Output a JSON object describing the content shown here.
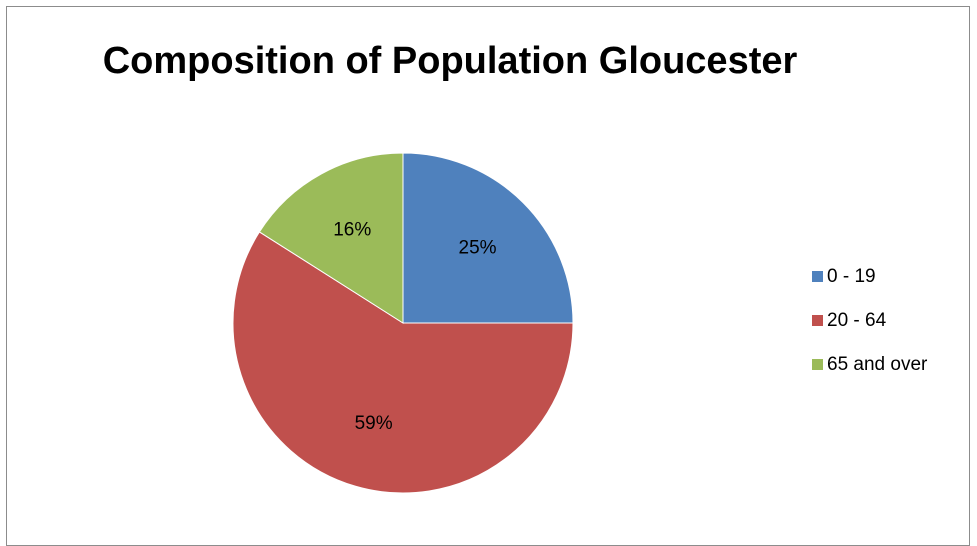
{
  "chart_data": {
    "type": "pie",
    "title": "Composition of Population Gloucester",
    "categories": [
      "0 - 19",
      "20 - 64",
      "65 and over"
    ],
    "values": [
      25,
      59,
      16
    ],
    "data_labels": [
      "25%",
      "59%",
      "16%"
    ],
    "colors": [
      "#4f81bd",
      "#c0504d",
      "#9bbb59"
    ],
    "legend_position": "right",
    "start_angle": "12 o'clock, clockwise"
  }
}
